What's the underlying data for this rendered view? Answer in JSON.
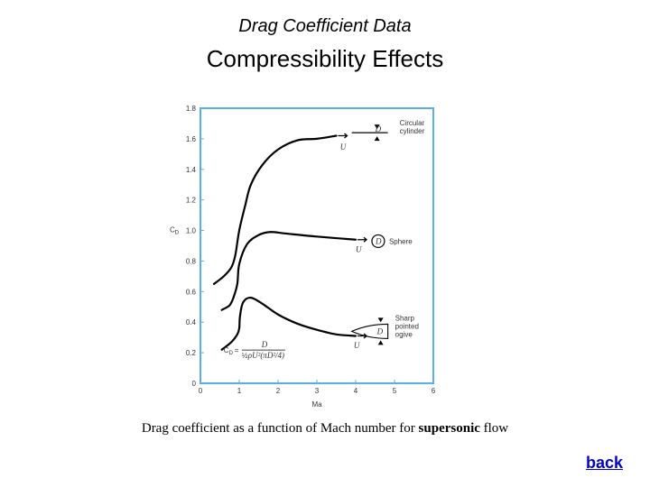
{
  "header": {
    "title": "Drag Coefficient Data",
    "subtitle": "Compressibility Effects"
  },
  "caption": {
    "before": "Drag coefficient as a function of Mach number for ",
    "bold": "supersonic",
    "after": " flow"
  },
  "nav": {
    "back_label": "back"
  },
  "chart_data": {
    "type": "line",
    "xlabel": "Ma",
    "ylabel": "C_D",
    "xlim": [
      0,
      6
    ],
    "ylim": [
      0,
      1.8
    ],
    "x_ticks": [
      "0",
      "1",
      "2",
      "3",
      "4",
      "5",
      "6"
    ],
    "y_ticks": [
      "0",
      "0.2",
      "0.4",
      "0.6",
      "0.8",
      "1.0",
      "1.2",
      "1.4",
      "1.6",
      "1.8"
    ],
    "grid": false,
    "axis_color": "#5aaee8",
    "series": [
      {
        "name": "Circular cylinder",
        "x": [
          0.35,
          0.6,
          0.8,
          0.9,
          1.0,
          1.15,
          1.3,
          1.6,
          2.0,
          2.5,
          3.0,
          3.5
        ],
        "y": [
          0.65,
          0.7,
          0.76,
          0.84,
          1.0,
          1.16,
          1.3,
          1.43,
          1.53,
          1.59,
          1.6,
          1.62
        ]
      },
      {
        "name": "Sphere",
        "x": [
          0.55,
          0.75,
          0.85,
          0.95,
          1.0,
          1.2,
          1.5,
          1.8,
          2.2,
          3.0,
          4.0
        ],
        "y": [
          0.48,
          0.51,
          0.56,
          0.65,
          0.78,
          0.91,
          0.97,
          0.99,
          0.98,
          0.96,
          0.94
        ]
      },
      {
        "name": "Sharp pointed ogive",
        "x": [
          0.55,
          0.8,
          0.95,
          1.0,
          1.02,
          1.1,
          1.3,
          1.6,
          2.0,
          2.5,
          3.0,
          3.5,
          4.0
        ],
        "y": [
          0.22,
          0.27,
          0.32,
          0.36,
          0.44,
          0.53,
          0.56,
          0.52,
          0.45,
          0.39,
          0.35,
          0.32,
          0.31
        ]
      }
    ],
    "annotations": {
      "cylinder_label": [
        "Circular",
        "cylinder"
      ],
      "sphere_label": "Sphere",
      "ogive_label": [
        "Sharp",
        "pointed",
        "ogive"
      ],
      "D": "D",
      "U": "U",
      "formula_lhs": "C",
      "formula_sub": "D",
      "formula_eq": "=",
      "formula_num": "D",
      "formula_den_half": "½",
      "formula_den": "ρU²(πD²/4)"
    }
  }
}
